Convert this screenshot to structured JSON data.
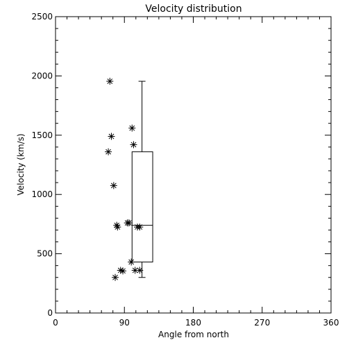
{
  "chart_data": {
    "type": "scatter",
    "title": "Velocity distribution",
    "xlabel": "Angle from north",
    "ylabel": "Velocity (km/s)",
    "xlim": [
      0,
      360
    ],
    "ylim": [
      0,
      2500
    ],
    "xticks": [
      0,
      90,
      180,
      270,
      360
    ],
    "yticks": [
      0,
      500,
      1000,
      1500,
      2000,
      2500
    ],
    "grid": false,
    "points": [
      {
        "x": 71,
        "y": 1955
      },
      {
        "x": 73,
        "y": 1490
      },
      {
        "x": 69,
        "y": 1360
      },
      {
        "x": 76,
        "y": 1075
      },
      {
        "x": 100,
        "y": 1560
      },
      {
        "x": 102,
        "y": 1420
      },
      {
        "x": 80,
        "y": 740
      },
      {
        "x": 81,
        "y": 725
      },
      {
        "x": 94,
        "y": 760
      },
      {
        "x": 96,
        "y": 760
      },
      {
        "x": 107,
        "y": 725
      },
      {
        "x": 110,
        "y": 725
      },
      {
        "x": 99,
        "y": 430
      },
      {
        "x": 104,
        "y": 360
      },
      {
        "x": 110,
        "y": 360
      },
      {
        "x": 85,
        "y": 360
      },
      {
        "x": 88,
        "y": 355
      },
      {
        "x": 78,
        "y": 300
      }
    ],
    "boxplot": {
      "x_left": 100,
      "x_right": 127,
      "x_whisker": 113,
      "whisker_low": 300,
      "q1": 430,
      "median": 740,
      "q3": 1360,
      "whisker_high": 1955
    }
  }
}
